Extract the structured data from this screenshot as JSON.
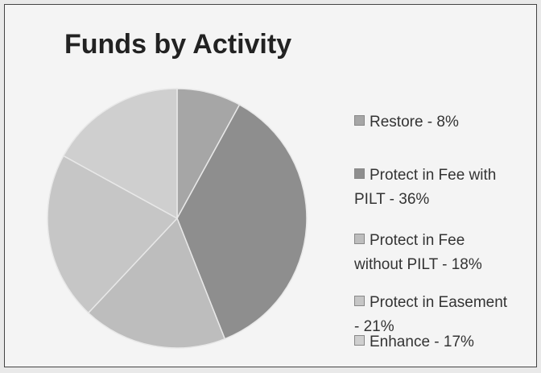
{
  "chart_data": {
    "type": "pie",
    "title": "Funds by Activity",
    "categories": [
      "Restore - 8%",
      "Protect in Fee with PILT - 36%",
      "Protect in Fee without PILT - 18%",
      "Protect in Easement - 21%",
      "Enhance - 17%"
    ],
    "values": [
      8,
      36,
      18,
      21,
      17
    ],
    "colors": [
      "#a6a6a6",
      "#8e8e8e",
      "#bdbdbd",
      "#c6c6c6",
      "#cfcfcf"
    ],
    "legend": "right"
  }
}
